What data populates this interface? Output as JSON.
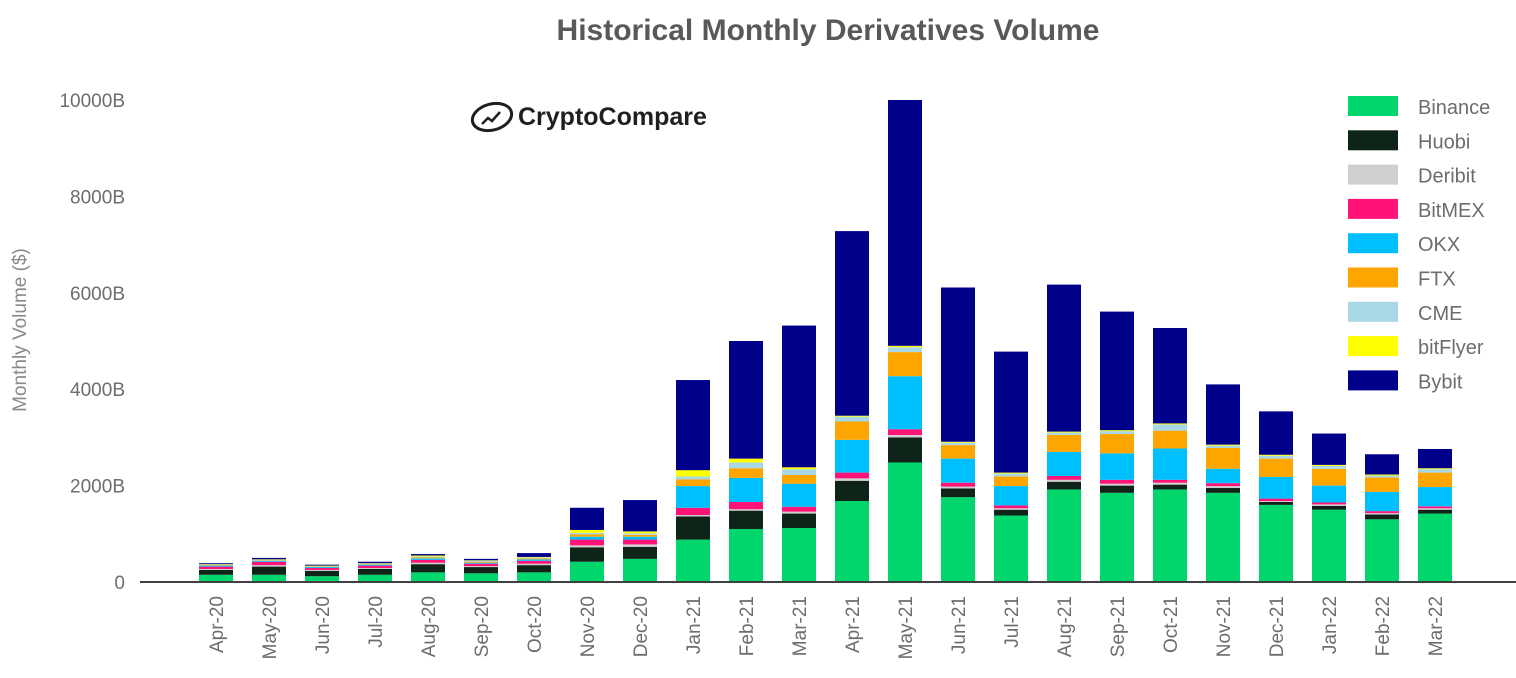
{
  "chart_data": {
    "type": "bar",
    "stacked": true,
    "title": "Historical Monthly Derivatives Volume",
    "xlabel": "",
    "ylabel": "Monthly Volume ($)",
    "ylim": [
      0,
      10000
    ],
    "y_ticks": [
      {
        "value": 0,
        "label": "0"
      },
      {
        "value": 2000,
        "label": "2000B"
      },
      {
        "value": 4000,
        "label": "4000B"
      },
      {
        "value": 6000,
        "label": "6000B"
      },
      {
        "value": 8000,
        "label": "8000B"
      },
      {
        "value": 10000,
        "label": "10000B"
      }
    ],
    "legend_position": "top-right",
    "logo_text": "CryptoCompare",
    "categories": [
      "Apr-20",
      "May-20",
      "Jun-20",
      "Jul-20",
      "Aug-20",
      "Sep-20",
      "Oct-20",
      "Nov-20",
      "Dec-20",
      "Jan-21",
      "Feb-21",
      "Mar-21",
      "Apr-21",
      "May-21",
      "Jun-21",
      "Jul-21",
      "Aug-21",
      "Sep-21",
      "Oct-21",
      "Nov-21",
      "Dec-21",
      "Jan-22",
      "Feb-22",
      "Mar-22"
    ],
    "series": [
      {
        "name": "Binance",
        "color": "#00d66c",
        "values": [
          150,
          150,
          120,
          150,
          200,
          180,
          200,
          420,
          480,
          880,
          1100,
          1120,
          1680,
          2480,
          1760,
          1380,
          1920,
          1850,
          1920,
          1850,
          1600,
          1500,
          1300,
          1420
        ]
      },
      {
        "name": "Huobi",
        "color": "#0f2418",
        "values": [
          100,
          170,
          110,
          120,
          170,
          130,
          150,
          300,
          250,
          480,
          380,
          300,
          420,
          520,
          180,
          120,
          160,
          150,
          100,
          100,
          60,
          80,
          100,
          80
        ]
      },
      {
        "name": "Deribit",
        "color": "#cfcfcf",
        "values": [
          20,
          30,
          20,
          20,
          30,
          20,
          30,
          40,
          50,
          30,
          30,
          40,
          50,
          50,
          40,
          30,
          40,
          40,
          40,
          40,
          20,
          30,
          30,
          30
        ]
      },
      {
        "name": "BitMEX",
        "color": "#ff1377",
        "values": [
          50,
          70,
          40,
          50,
          60,
          50,
          60,
          120,
          100,
          150,
          150,
          100,
          120,
          120,
          80,
          60,
          80,
          80,
          60,
          60,
          50,
          40,
          40,
          40
        ]
      },
      {
        "name": "OKX",
        "color": "#00bfff",
        "values": [
          20,
          20,
          20,
          20,
          30,
          20,
          30,
          60,
          60,
          450,
          500,
          480,
          680,
          1100,
          500,
          400,
          500,
          550,
          650,
          300,
          450,
          350,
          400,
          400
        ]
      },
      {
        "name": "FTX",
        "color": "#ffa500",
        "values": [
          10,
          10,
          10,
          10,
          20,
          20,
          20,
          50,
          40,
          140,
          200,
          180,
          380,
          500,
          280,
          200,
          350,
          400,
          370,
          430,
          380,
          350,
          300,
          300
        ]
      },
      {
        "name": "CME",
        "color": "#a8d8e6",
        "values": [
          10,
          10,
          10,
          10,
          20,
          20,
          20,
          30,
          30,
          60,
          120,
          120,
          100,
          100,
          50,
          60,
          50,
          60,
          130,
          50,
          60,
          60,
          40,
          70
        ]
      },
      {
        "name": "bitFlyer",
        "color": "#ffff00",
        "values": [
          10,
          10,
          10,
          10,
          20,
          10,
          10,
          60,
          40,
          130,
          80,
          40,
          20,
          30,
          20,
          20,
          20,
          20,
          20,
          20,
          20,
          20,
          20,
          20
        ]
      },
      {
        "name": "Bybit",
        "color": "#00008b",
        "values": [
          20,
          30,
          20,
          30,
          30,
          30,
          80,
          460,
          650,
          1870,
          2440,
          2940,
          3830,
          5100,
          3200,
          2510,
          3050,
          2460,
          1980,
          1250,
          900,
          650,
          420,
          400
        ]
      }
    ]
  }
}
